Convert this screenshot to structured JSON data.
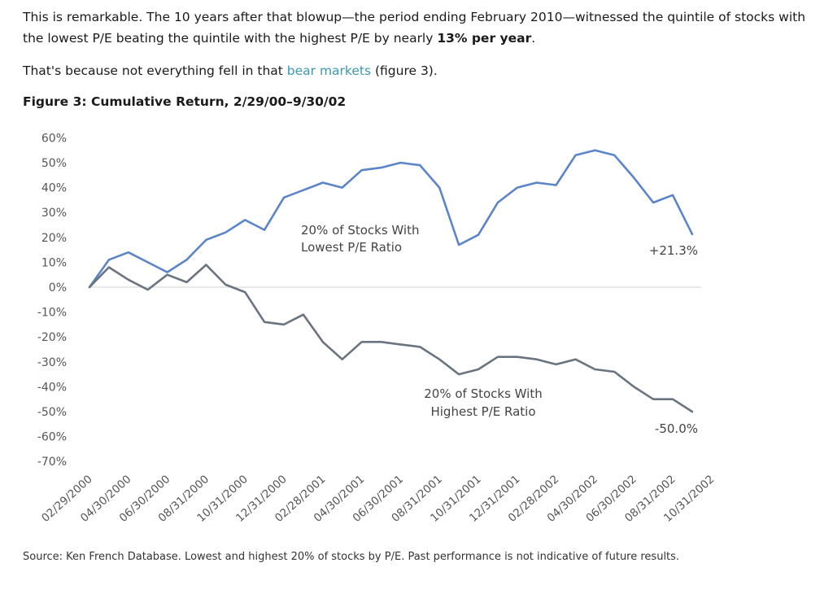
{
  "article": {
    "p1_part1": "This is remarkable. The 10 years after that blowup—the period ending February 2010—witnessed the quintile of stocks with the lowest P/E beating the quintile with the highest P/E by nearly ",
    "p1_bold": "13% per year",
    "p1_end": ".",
    "p2_part1": "That's because not everything fell in that ",
    "p2_link": "bear markets",
    "p2_end": " (figure 3).",
    "figure_title": "Figure 3: Cumulative Return, 2/29/00–9/30/02",
    "source": "Source: Ken French Database. Lowest and highest 20% of stocks by P/E. Past performance is not indicative of future results."
  },
  "chart_data": {
    "type": "line",
    "title": "Figure 3: Cumulative Return, 2/29/00–9/30/02",
    "ylim": [
      -70,
      60
    ],
    "yticks": [
      "60%",
      "50%",
      "40%",
      "30%",
      "20%",
      "10%",
      "0%",
      "-10%",
      "-20%",
      "-30%",
      "-40%",
      "-50%",
      "-60%",
      "-70%"
    ],
    "ytick_values": [
      60,
      50,
      40,
      30,
      20,
      10,
      0,
      -10,
      -20,
      -30,
      -40,
      -50,
      -60,
      -70
    ],
    "xtick_labels": [
      "02/29/2000",
      "04/30/2000",
      "06/30/2000",
      "08/31/2000",
      "10/31/2000",
      "12/31/2000",
      "02/28/2001",
      "04/30/2001",
      "06/30/2001",
      "08/31/2001",
      "10/31/2001",
      "12/31/2001",
      "02/28/2002",
      "04/30/2002",
      "06/30/2002",
      "08/31/2002",
      "10/31/2002"
    ],
    "x": [
      "02/2000",
      "03/2000",
      "04/2000",
      "05/2000",
      "06/2000",
      "07/2000",
      "08/2000",
      "09/2000",
      "10/2000",
      "11/2000",
      "12/2000",
      "01/2001",
      "02/2001",
      "03/2001",
      "04/2001",
      "05/2001",
      "06/2001",
      "07/2001",
      "08/2001",
      "09/2001",
      "10/2001",
      "11/2001",
      "12/2001",
      "01/2002",
      "02/2002",
      "03/2002",
      "04/2002",
      "05/2002",
      "06/2002",
      "07/2002",
      "08/2002",
      "09/2002"
    ],
    "series": [
      {
        "name": "20% of Stocks With Lowest P/E Ratio",
        "color": "#5b84c9",
        "values": [
          0,
          11,
          14,
          10,
          6,
          11,
          19,
          22,
          27,
          23,
          36,
          39,
          42,
          40,
          47,
          48,
          50,
          49,
          40,
          17,
          21,
          34,
          40,
          42,
          41,
          53,
          55,
          53,
          44,
          34,
          37,
          21.3
        ],
        "end_label": "+21.3%",
        "label_lines": [
          "20% of Stocks With",
          "Lowest P/E Ratio"
        ]
      },
      {
        "name": "20% of Stocks With Highest P/E Ratio",
        "color": "#6a7480",
        "values": [
          0,
          8,
          3,
          -1,
          5,
          2,
          9,
          1,
          -2,
          -14,
          -15,
          -11,
          -22,
          -29,
          -22,
          -22,
          -23,
          -24,
          -29,
          -35,
          -33,
          -28,
          -28,
          -29,
          -31,
          -29,
          -33,
          -34,
          -40,
          -45,
          -45,
          -50.0
        ],
        "end_label": "-50.0%",
        "label_lines": [
          "20% of Stocks With",
          "Highest P/E Ratio"
        ]
      }
    ],
    "grid": false,
    "zero_line": true
  }
}
